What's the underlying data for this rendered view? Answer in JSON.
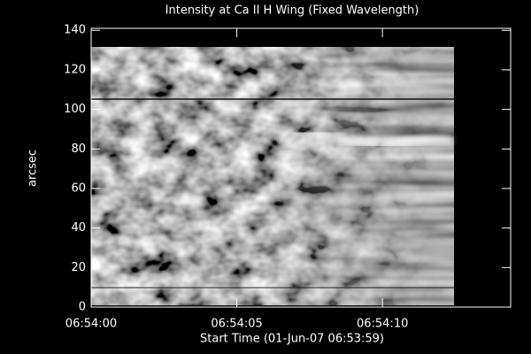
{
  "chart_data": {
    "type": "image",
    "title": "Intensity at Ca II H Wing (Fixed Wavelength)",
    "xlabel": "Start Time (01-Jun-07 06:53:59)",
    "ylabel": "arcsec",
    "xlim": [
      0,
      14.4
    ],
    "xticks": [
      {
        "value": 0,
        "label": "06:54:00"
      },
      {
        "value": 5,
        "label": "06:54:05"
      },
      {
        "value": 10,
        "label": "06:54:10"
      }
    ],
    "ylim": [
      0,
      141
    ],
    "yticks": [
      0,
      20,
      40,
      60,
      80,
      100,
      120,
      140
    ],
    "color": "#ffffff"
  }
}
